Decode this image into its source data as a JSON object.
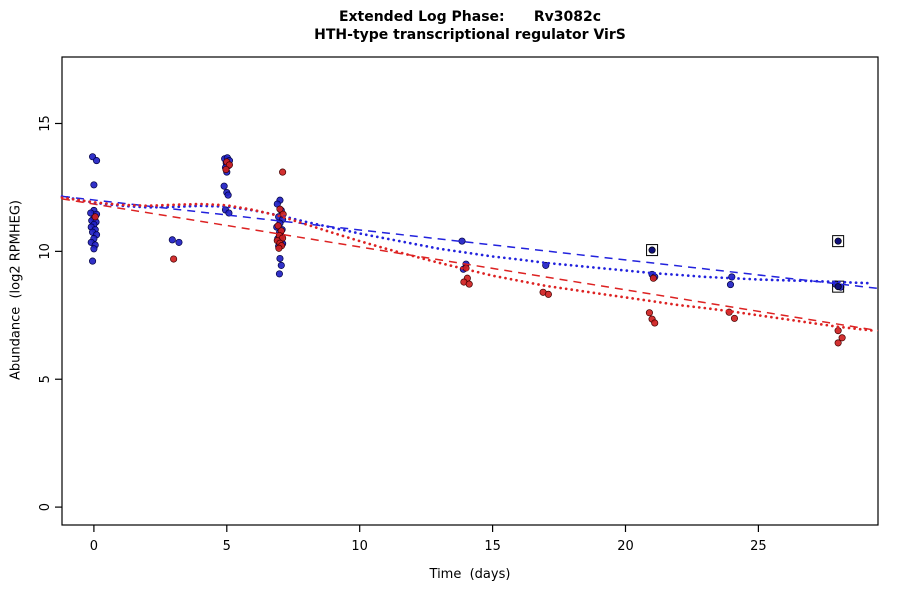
{
  "figure": {
    "title_line1": "Extended Log Phase:      Rv3082c",
    "title_line2": "HTH-type transcriptional regulator VirS",
    "xlabel": "Time  (days)",
    "ylabel": "Abundance  (log2 RPMHEG)"
  },
  "colors": {
    "blue_point_fill": "#1f1fc3",
    "blue_point_edge": "#000040",
    "red_point_fill": "#cf1f1f",
    "red_point_edge": "#400000",
    "blue_line": "#2222dd",
    "red_line": "#dd2222",
    "boxed_point_fill": "#10107a",
    "axis": "#000000"
  },
  "chart_data": {
    "type": "scatter",
    "title": "Extended Log Phase: Rv3082c",
    "subtitle": "HTH-type transcriptional regulator VirS",
    "xlabel": "Time  (days)",
    "ylabel": "Abundance  (log2 RPMHEG)",
    "xlim": [
      -1.2,
      29.5
    ],
    "ylim": [
      -0.7,
      17.6
    ],
    "xticks": [
      0,
      5,
      10,
      15,
      20,
      25
    ],
    "yticks": [
      0,
      5,
      10,
      15
    ],
    "grid": false,
    "legend": "none",
    "series": [
      {
        "name": "blue-points",
        "kind": "points",
        "color": "#1f1fc3",
        "edge": "#000040",
        "points": [
          [
            -0.05,
            13.7
          ],
          [
            0.1,
            13.55
          ],
          [
            0,
            12.6
          ],
          [
            0,
            11.6
          ],
          [
            -0.12,
            11.5
          ],
          [
            0.1,
            11.45
          ],
          [
            0,
            11.3
          ],
          [
            -0.08,
            11.2
          ],
          [
            0.08,
            11.15
          ],
          [
            0,
            11.05
          ],
          [
            -0.1,
            10.95
          ],
          [
            0.05,
            10.85
          ],
          [
            -0.05,
            10.75
          ],
          [
            0.1,
            10.65
          ],
          [
            0,
            10.5
          ],
          [
            -0.1,
            10.35
          ],
          [
            0.05,
            10.25
          ],
          [
            0,
            10.1
          ],
          [
            -0.05,
            9.62
          ],
          [
            2.95,
            10.45
          ],
          [
            3.2,
            10.35
          ],
          [
            4.92,
            13.62
          ],
          [
            5.02,
            13.66
          ],
          [
            5.1,
            13.55
          ],
          [
            4.98,
            13.45
          ],
          [
            5.06,
            13.35
          ],
          [
            4.95,
            13.28
          ],
          [
            5.0,
            13.1
          ],
          [
            4.9,
            12.55
          ],
          [
            5.0,
            12.3
          ],
          [
            5.05,
            12.2
          ],
          [
            4.95,
            11.62
          ],
          [
            5.08,
            11.5
          ],
          [
            7.0,
            12.0
          ],
          [
            6.9,
            11.85
          ],
          [
            7.05,
            11.6
          ],
          [
            6.95,
            11.35
          ],
          [
            7.1,
            11.25
          ],
          [
            7.0,
            11.1
          ],
          [
            6.88,
            10.95
          ],
          [
            7.08,
            10.85
          ],
          [
            6.98,
            10.72
          ],
          [
            7.05,
            10.6
          ],
          [
            6.92,
            10.5
          ],
          [
            7.02,
            10.42
          ],
          [
            7.1,
            10.3
          ],
          [
            6.95,
            10.2
          ],
          [
            7.0,
            9.72
          ],
          [
            7.05,
            9.45
          ],
          [
            6.98,
            9.12
          ],
          [
            13.85,
            10.4
          ],
          [
            14.0,
            9.5
          ],
          [
            13.9,
            9.3
          ],
          [
            17.0,
            9.45
          ],
          [
            21.0,
            9.1
          ],
          [
            21.1,
            9.0
          ],
          [
            24.0,
            9.0
          ],
          [
            23.95,
            8.7
          ],
          [
            27.9,
            8.72
          ],
          [
            28.1,
            8.6
          ]
        ]
      },
      {
        "name": "red-points",
        "kind": "points",
        "color": "#cf1f1f",
        "edge": "#400000",
        "points": [
          [
            0.05,
            11.35
          ],
          [
            3.0,
            9.7
          ],
          [
            5.0,
            13.5
          ],
          [
            5.1,
            13.38
          ],
          [
            4.97,
            13.2
          ],
          [
            7.1,
            13.1
          ],
          [
            7.0,
            11.65
          ],
          [
            7.12,
            11.45
          ],
          [
            6.93,
            11.0
          ],
          [
            7.05,
            10.8
          ],
          [
            6.98,
            10.62
          ],
          [
            7.1,
            10.52
          ],
          [
            6.9,
            10.42
          ],
          [
            7.0,
            10.32
          ],
          [
            7.06,
            10.22
          ],
          [
            6.96,
            10.12
          ],
          [
            14.0,
            9.35
          ],
          [
            14.05,
            8.95
          ],
          [
            13.92,
            8.8
          ],
          [
            14.12,
            8.72
          ],
          [
            16.9,
            8.4
          ],
          [
            17.1,
            8.32
          ],
          [
            21.05,
            8.95
          ],
          [
            20.9,
            7.6
          ],
          [
            21.0,
            7.35
          ],
          [
            21.1,
            7.2
          ],
          [
            23.9,
            7.62
          ],
          [
            24.1,
            7.38
          ],
          [
            28.0,
            6.9
          ],
          [
            28.15,
            6.62
          ],
          [
            28.0,
            6.42
          ]
        ]
      },
      {
        "name": "boxed-outlier-points",
        "kind": "boxed",
        "box_color": "#000000",
        "points": [
          {
            "x": 21,
            "y": 10.05,
            "color": "#10107a"
          },
          {
            "x": 28,
            "y": 10.4,
            "color": "#10107a"
          },
          {
            "x": 28,
            "y": 8.62,
            "color": "#10107a"
          }
        ]
      },
      {
        "name": "blue-linear-fit",
        "kind": "line",
        "style": "dashed",
        "color": "#2222dd",
        "points": [
          [
            -1.2,
            12.15
          ],
          [
            29.5,
            8.55
          ]
        ]
      },
      {
        "name": "red-linear-fit",
        "kind": "line",
        "style": "dashed",
        "color": "#dd2222",
        "points": [
          [
            -1.2,
            12.05
          ],
          [
            29.5,
            6.9
          ]
        ]
      },
      {
        "name": "blue-loess-fit",
        "kind": "line",
        "style": "dotted",
        "color": "#2222dd",
        "points": [
          [
            -1.2,
            12.15
          ],
          [
            0,
            11.9
          ],
          [
            1,
            11.78
          ],
          [
            2,
            11.72
          ],
          [
            3,
            11.74
          ],
          [
            4,
            11.78
          ],
          [
            5,
            11.75
          ],
          [
            6,
            11.6
          ],
          [
            7,
            11.4
          ],
          [
            8,
            11.15
          ],
          [
            9,
            10.92
          ],
          [
            10,
            10.7
          ],
          [
            11,
            10.5
          ],
          [
            12,
            10.3
          ],
          [
            13,
            10.1
          ],
          [
            14,
            9.95
          ],
          [
            15,
            9.8
          ],
          [
            16,
            9.68
          ],
          [
            17,
            9.55
          ],
          [
            18,
            9.45
          ],
          [
            19,
            9.35
          ],
          [
            20,
            9.25
          ],
          [
            21,
            9.15
          ],
          [
            22,
            9.08
          ],
          [
            23,
            9.0
          ],
          [
            24,
            8.95
          ],
          [
            25,
            8.9
          ],
          [
            26,
            8.87
          ],
          [
            27,
            8.84
          ],
          [
            28,
            8.8
          ],
          [
            29.3,
            8.75
          ]
        ]
      },
      {
        "name": "red-loess-fit",
        "kind": "line",
        "style": "dotted",
        "color": "#dd2222",
        "points": [
          [
            -1.2,
            12.1
          ],
          [
            0,
            11.92
          ],
          [
            1,
            11.82
          ],
          [
            2,
            11.78
          ],
          [
            3,
            11.82
          ],
          [
            4,
            11.85
          ],
          [
            5,
            11.8
          ],
          [
            6,
            11.62
          ],
          [
            7,
            11.38
          ],
          [
            8,
            11.05
          ],
          [
            9,
            10.72
          ],
          [
            10,
            10.4
          ],
          [
            11,
            10.1
          ],
          [
            12,
            9.82
          ],
          [
            13,
            9.55
          ],
          [
            14,
            9.3
          ],
          [
            15,
            9.05
          ],
          [
            16,
            8.85
          ],
          [
            17,
            8.65
          ],
          [
            18,
            8.5
          ],
          [
            19,
            8.35
          ],
          [
            20,
            8.2
          ],
          [
            21,
            8.05
          ],
          [
            22,
            7.9
          ],
          [
            23,
            7.78
          ],
          [
            24,
            7.65
          ],
          [
            25,
            7.5
          ],
          [
            26,
            7.35
          ],
          [
            27,
            7.2
          ],
          [
            28,
            7.05
          ],
          [
            29.3,
            6.9
          ]
        ]
      }
    ]
  }
}
